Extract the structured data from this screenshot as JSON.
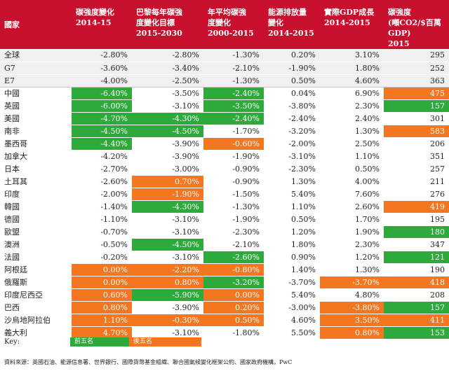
{
  "chart_data": {
    "type": "table",
    "columns": [
      "國家",
      "碳強度變化\n2014-15",
      "巴黎每年碳強\n度變化目標\n2015-2030",
      "年平均碳強\n度變化\n2000-2015",
      "能源排放量\n變化\n2014-2015",
      "實際GDP成長\n2014-2015",
      "碳強度\n(噸CO2/$百萬\nGDP)\n2015"
    ],
    "rows": [
      {
        "country": "全球",
        "values": [
          "-2.80%",
          "-2.80%",
          "-1.30%",
          "0.20%",
          "3.10%",
          "295"
        ],
        "marks": [
          "",
          "",
          "",
          "",
          "",
          ""
        ]
      },
      {
        "country": "G7",
        "values": [
          "-3.60%",
          "-3.40%",
          "-2.10%",
          "-1.90%",
          "1.80%",
          "252"
        ],
        "marks": [
          "",
          "",
          "",
          "",
          "",
          ""
        ]
      },
      {
        "country": "E7",
        "values": [
          "-4.00%",
          "-2.50%",
          "-1.30%",
          "0.50%",
          "4.60%",
          "363"
        ],
        "marks": [
          "",
          "",
          "",
          "",
          "",
          ""
        ]
      },
      {
        "country": "中國",
        "values": [
          "-6.40%",
          "-3.50%",
          "-2.40%",
          "0.04%",
          "6.90%",
          "475"
        ],
        "marks": [
          "good",
          "",
          "good",
          "",
          "",
          "bad"
        ]
      },
      {
        "country": "英國",
        "values": [
          "-6.00%",
          "-3.10%",
          "-3.50%",
          "-3.80%",
          "2.30%",
          "157"
        ],
        "marks": [
          "good",
          "",
          "good",
          "",
          "",
          "good"
        ]
      },
      {
        "country": "美國",
        "values": [
          "-4.70%",
          "-4.30%",
          "-2.40%",
          "-2.40%",
          "2.40%",
          "301"
        ],
        "marks": [
          "good",
          "good",
          "good",
          "",
          "",
          ""
        ]
      },
      {
        "country": "南非",
        "values": [
          "-4.50%",
          "-4.50%",
          "-1.70%",
          "-3.20%",
          "1.30%",
          "583"
        ],
        "marks": [
          "good",
          "good",
          "",
          "",
          "",
          "bad"
        ]
      },
      {
        "country": "墨西哥",
        "values": [
          "-4.40%",
          "-3.90%",
          "-0.60%",
          "-2.00%",
          "2.50%",
          "206"
        ],
        "marks": [
          "good",
          "",
          "bad",
          "",
          "",
          ""
        ]
      },
      {
        "country": "加拿大",
        "values": [
          "-4.20%",
          "-3.90%",
          "-1.90%",
          "-3.10%",
          "1.10%",
          "351"
        ],
        "marks": [
          "",
          "",
          "",
          "",
          "",
          ""
        ]
      },
      {
        "country": "日本",
        "values": [
          "-2.70%",
          "-3.00%",
          "-0.90%",
          "-2.30%",
          "0.50%",
          "257"
        ],
        "marks": [
          "",
          "",
          "",
          "",
          "",
          ""
        ]
      },
      {
        "country": "土耳其",
        "values": [
          "-2.60%",
          "0.70%",
          "-0.90%",
          "1.30%",
          "4.00%",
          "211"
        ],
        "marks": [
          "",
          "bad",
          "",
          "",
          "",
          ""
        ]
      },
      {
        "country": "印度",
        "values": [
          "-2.00%",
          "-1.90%",
          "-1.50%",
          "5.40%",
          "7.60%",
          "276"
        ],
        "marks": [
          "",
          "bad",
          "",
          "",
          "",
          ""
        ]
      },
      {
        "country": "韓國",
        "values": [
          "-1.40%",
          "-4.30%",
          "-1.30%",
          "1.10%",
          "2.60%",
          "419"
        ],
        "marks": [
          "",
          "good",
          "",
          "",
          "",
          "bad"
        ]
      },
      {
        "country": "德國",
        "values": [
          "-1.10%",
          "-3.10%",
          "-1.90%",
          "0.50%",
          "1.70%",
          "195"
        ],
        "marks": [
          "",
          "",
          "",
          "",
          "",
          ""
        ]
      },
      {
        "country": "歐盟",
        "values": [
          "-0.70%",
          "-3.10%",
          "-2.30%",
          "1.20%",
          "1.90%",
          "180"
        ],
        "marks": [
          "",
          "",
          "",
          "",
          "",
          "good"
        ]
      },
      {
        "country": "澳洲",
        "values": [
          "-0.50%",
          "-4.50%",
          "-2.10%",
          "1.80%",
          "2.30%",
          "347"
        ],
        "marks": [
          "",
          "good",
          "",
          "",
          "",
          ""
        ]
      },
      {
        "country": "法國",
        "values": [
          "-0.20%",
          "-3.10%",
          "-2.60%",
          "0.90%",
          "1.20%",
          "121"
        ],
        "marks": [
          "",
          "",
          "good",
          "",
          "",
          "good"
        ]
      },
      {
        "country": "阿根廷",
        "values": [
          "0.00%",
          "-2.20%",
          "-0.80%",
          "1.40%",
          "1.30%",
          "190"
        ],
        "marks": [
          "bad",
          "bad",
          "bad",
          "",
          "",
          ""
        ]
      },
      {
        "country": "俄羅斯",
        "values": [
          "0.00%",
          "0.80%",
          "-3.20%",
          "-3.70%",
          "-3.70%",
          "418"
        ],
        "marks": [
          "bad",
          "bad",
          "good",
          "",
          "bad",
          "bad"
        ]
      },
      {
        "country": "印度尼西亞",
        "values": [
          "0.60%",
          "-5.90%",
          "0.00%",
          "5.40%",
          "4.80%",
          "208"
        ],
        "marks": [
          "bad",
          "good",
          "bad",
          "",
          "",
          ""
        ]
      },
      {
        "country": "巴西",
        "values": [
          "0.80%",
          "-3.90%",
          "0.20%",
          "-3.00%",
          "-3.80%",
          "157"
        ],
        "marks": [
          "bad",
          "",
          "bad",
          "",
          "bad",
          "good"
        ]
      },
      {
        "country": "沙烏地阿拉伯",
        "values": [
          "1.10%",
          "-0.30%",
          "0.50%",
          "4.60%",
          "3.50%",
          "411"
        ],
        "marks": [
          "bad",
          "bad",
          "bad",
          "",
          "bad",
          "bad"
        ]
      },
      {
        "country": "義大利",
        "values": [
          "4.70%",
          "-3.10%",
          "-1.80%",
          "5.50%",
          "0.80%",
          "153"
        ],
        "marks": [
          "bad",
          "",
          "",
          "",
          "bad",
          "good"
        ]
      }
    ],
    "key_label": "Key:",
    "key_good": "前五名",
    "key_bad": "後五名",
    "source": "資料來源：英國石油、能源信息署、世界銀行、國際貨幣基金組織、聯合國氣候變化框架公約、國家政府機構，PwC",
    "colors": {
      "header": "#c8102e",
      "good": "#2daa3b",
      "bad": "#f47620"
    }
  }
}
